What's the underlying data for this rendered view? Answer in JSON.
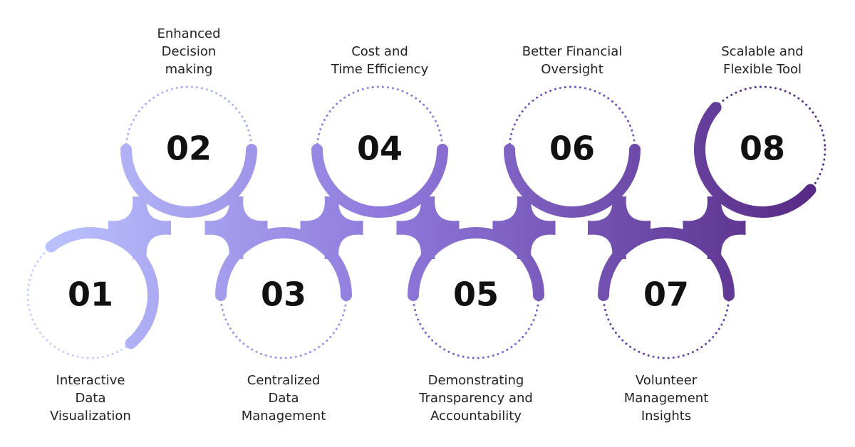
{
  "steps": [
    {
      "number": "01",
      "label": [
        "Interactive",
        "Data",
        "Visualization"
      ]
    },
    {
      "number": "02",
      "label": [
        "Enhanced",
        "Decision",
        "making"
      ]
    },
    {
      "number": "03",
      "label": [
        "Centralized",
        "Data",
        "Management"
      ]
    },
    {
      "number": "04",
      "label": [
        "Cost and",
        "Time Efficiency"
      ]
    },
    {
      "number": "05",
      "label": [
        "Demonstrating",
        "Transparency and",
        "Accountability"
      ]
    },
    {
      "number": "06",
      "label": [
        "Better Financial",
        "Oversight"
      ]
    },
    {
      "number": "07",
      "label": [
        "Volunteer",
        "Management",
        "Insights"
      ]
    },
    {
      "number": "08",
      "label": [
        "Scalable and",
        "Flexible Tool"
      ]
    }
  ]
}
